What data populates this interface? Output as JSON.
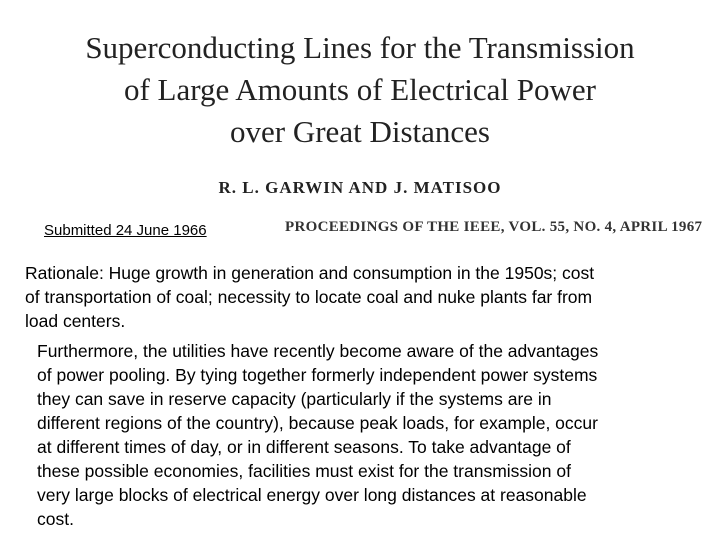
{
  "header": {
    "title_lines": [
      "Superconducting Lines for the Transmission",
      "of Large Amounts of Electrical Power",
      "over Great Distances"
    ],
    "authors": "R. L. GARWIN AND J. MATISOO",
    "submitted": "Submitted 24 June 1966",
    "citation": "PROCEEDINGS OF THE IEEE, VOL. 55, NO. 4, APRIL 1967"
  },
  "rationale": {
    "lines": [
      "Rationale:  Huge growth in generation and consumption in the 1950s; cost",
      "of transportation of coal; necessity to locate coal and nuke plants far from",
      "load centers."
    ]
  },
  "quote": {
    "lines": [
      "Furthermore, the utilities have recently become aware of the advantages",
      "of power pooling. By tying together formerly independent power systems",
      "they can save in reserve capacity (particularly if the systems are in",
      "different regions of the country), because peak loads, for example, occur",
      "at different times of day, or in different seasons. To take advantage of",
      "these possible economies, facilities must exist for the transmission of",
      "very large blocks of electrical energy over long distances at reasonable",
      "cost."
    ]
  }
}
